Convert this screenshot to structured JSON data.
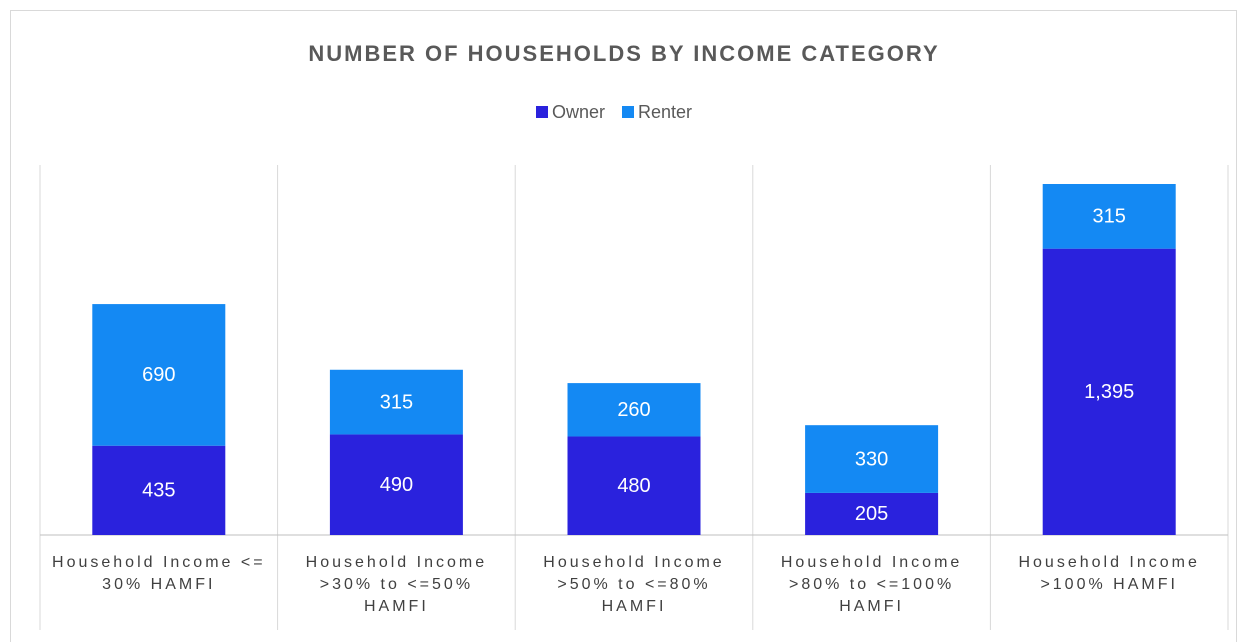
{
  "chart_data": {
    "type": "stacked_bar",
    "title": "NUMBER OF HOUSEHOLDS BY INCOME CATEGORY",
    "categories": [
      "Household Income <= 30% HAMFI",
      "Household Income >30% to <=50% HAMFI",
      "Household Income >50% to <=80% HAMFI",
      "Household Income >80% to <=100% HAMFI",
      "Household Income >100% HAMFI"
    ],
    "series": [
      {
        "name": "Owner",
        "color": "#2a22dd",
        "values": [
          435,
          490,
          480,
          205,
          1395
        ],
        "value_labels": [
          "435",
          "490",
          "480",
          "205",
          "1,395"
        ]
      },
      {
        "name": "Renter",
        "color": "#1489f3",
        "values": [
          690,
          315,
          260,
          330,
          315
        ]
      }
    ],
    "legend": "top"
  }
}
